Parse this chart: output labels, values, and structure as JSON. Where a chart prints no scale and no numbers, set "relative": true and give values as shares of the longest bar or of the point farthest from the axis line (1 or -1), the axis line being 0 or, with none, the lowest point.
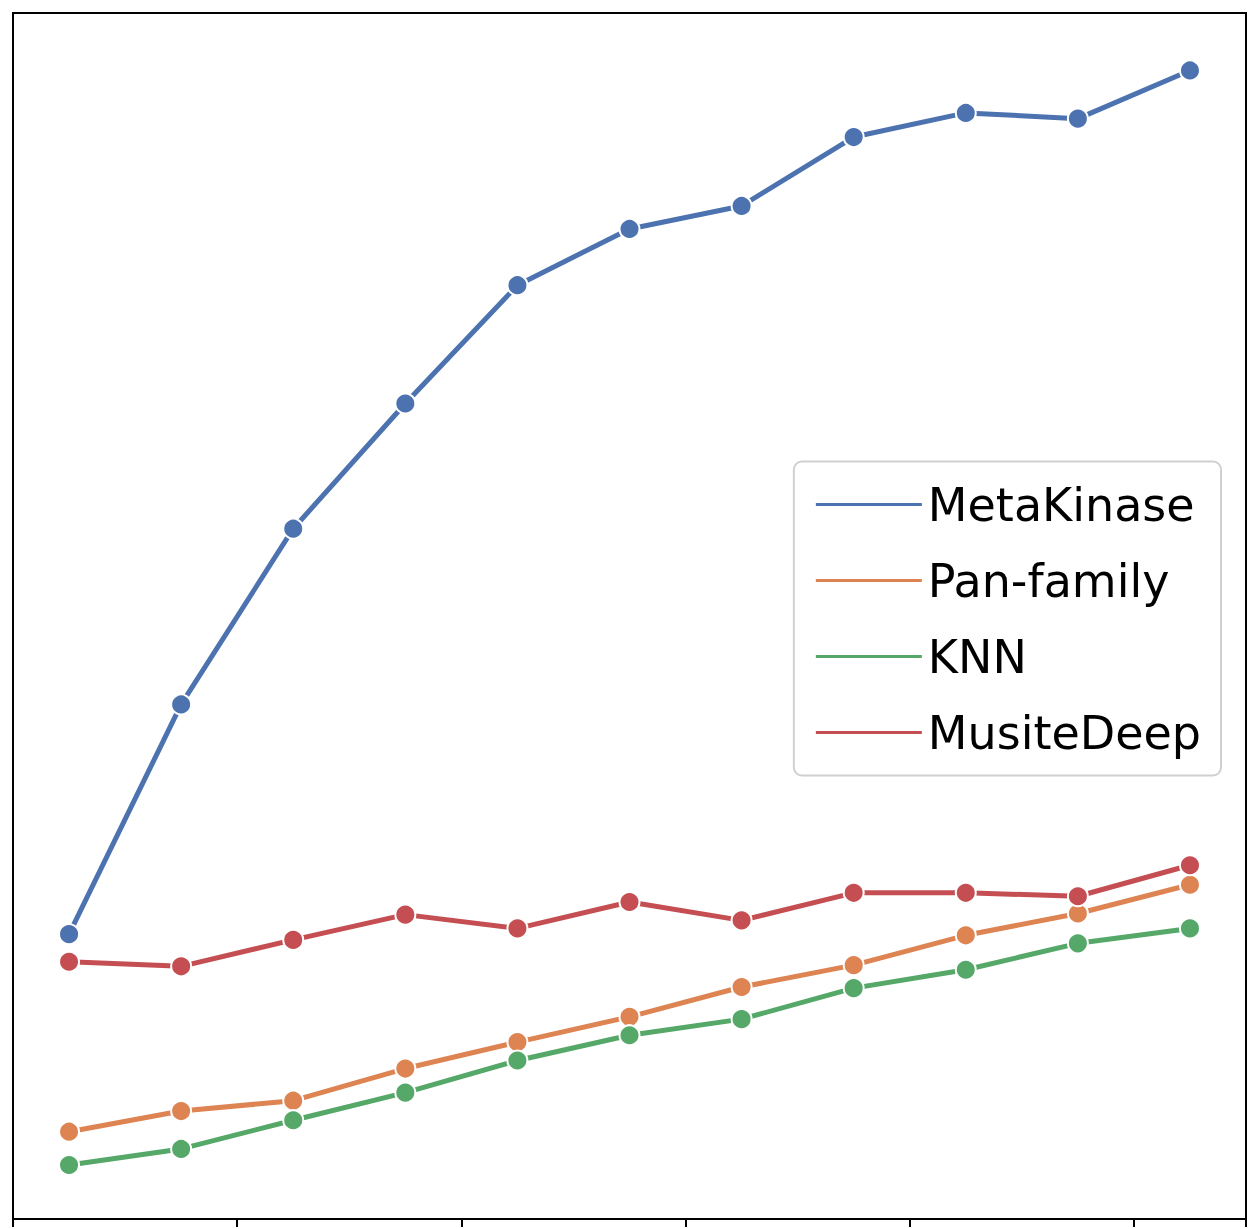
{
  "chart_data": {
    "type": "line",
    "relative": true,
    "categories": [
      null,
      null,
      null,
      null,
      null,
      null,
      null,
      null,
      null,
      null,
      null
    ],
    "legend": "right",
    "marker": "circle",
    "line_style": "solid",
    "grid": false,
    "series": [
      {
        "name": "MetaKinase",
        "color": "#4c72b0",
        "values": [
          0.248,
          0.448,
          0.601,
          0.71,
          0.813,
          0.862,
          0.882,
          0.942,
          0.963,
          0.958,
          1
        ]
      },
      {
        "name": "Pan-family",
        "color": "#dd8452",
        "values": [
          0.076,
          0.094,
          0.103,
          0.131,
          0.154,
          0.176,
          0.202,
          0.221,
          0.247,
          0.266,
          0.291
        ]
      },
      {
        "name": "KNN",
        "color": "#55a868",
        "values": [
          0.047,
          0.061,
          0.086,
          0.11,
          0.138,
          0.16,
          0.174,
          0.201,
          0.217,
          0.24,
          0.253
        ]
      },
      {
        "name": "MusiteDeep",
        "color": "#c44e52",
        "values": [
          0.224,
          0.22,
          0.243,
          0.265,
          0.253,
          0.276,
          0.26,
          0.284,
          0.284,
          0.281,
          0.308
        ]
      }
    ]
  }
}
